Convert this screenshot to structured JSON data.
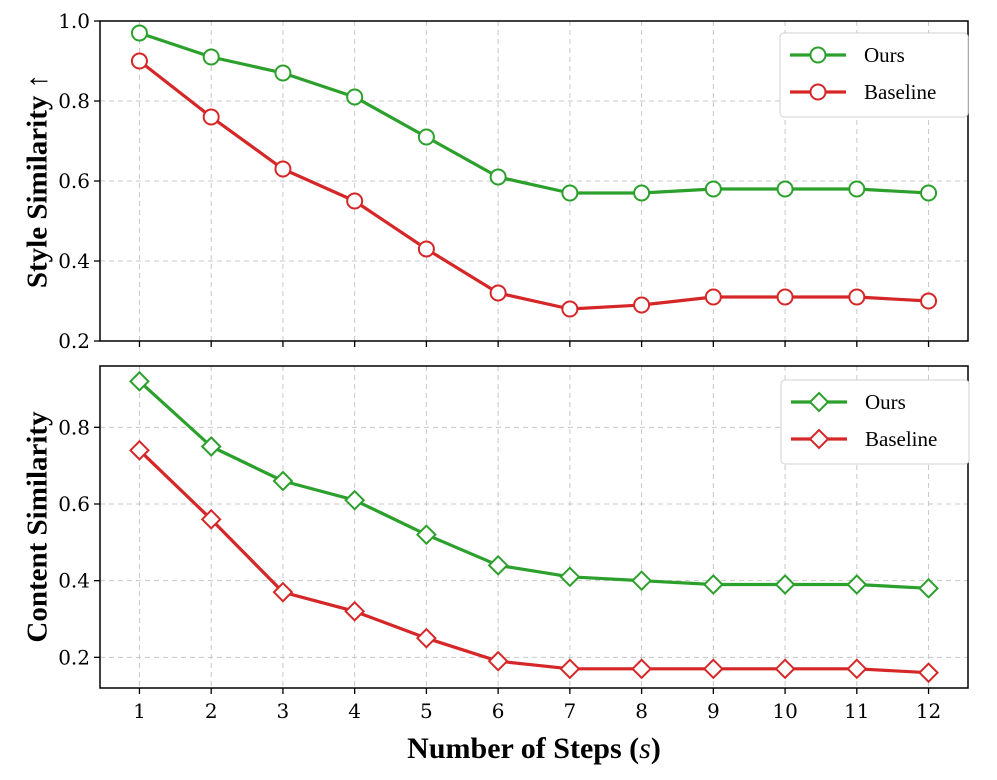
{
  "chart_data": [
    {
      "type": "line",
      "ylabel": "Style Similarity ↑",
      "xlabel": "",
      "x": [
        1,
        2,
        3,
        4,
        5,
        6,
        7,
        8,
        9,
        10,
        11,
        12
      ],
      "xlim": [
        0.45,
        12.55
      ],
      "ylim": [
        0.2,
        1.0
      ],
      "yticks": [
        0.2,
        0.4,
        0.6,
        0.8,
        1.0
      ],
      "ytick_labels": [
        "0.2",
        "0.4",
        "0.6",
        "0.8",
        "1.0"
      ],
      "xtick_labels": [
        "1",
        "2",
        "3",
        "4",
        "5",
        "6",
        "7",
        "8",
        "9",
        "10",
        "11",
        "12"
      ],
      "show_xtick_labels": false,
      "marker": "circle",
      "grid": true,
      "legend_position": "top-right",
      "series": [
        {
          "name": "Ours",
          "color": "#2ca02c",
          "values": [
            0.97,
            0.91,
            0.87,
            0.81,
            0.71,
            0.61,
            0.57,
            0.57,
            0.58,
            0.58,
            0.58,
            0.57
          ]
        },
        {
          "name": "Baseline",
          "color": "#d62728",
          "values": [
            0.9,
            0.76,
            0.63,
            0.55,
            0.43,
            0.32,
            0.28,
            0.29,
            0.31,
            0.31,
            0.31,
            0.3
          ]
        }
      ]
    },
    {
      "type": "line",
      "ylabel": "Content Similarity",
      "xlabel": "Number of Steps (s)",
      "x": [
        1,
        2,
        3,
        4,
        5,
        6,
        7,
        8,
        9,
        10,
        11,
        12
      ],
      "xlim": [
        0.45,
        12.55
      ],
      "ylim": [
        0.12,
        0.96
      ],
      "yticks": [
        0.2,
        0.4,
        0.6,
        0.8
      ],
      "ytick_labels": [
        "0.2",
        "0.4",
        "0.6",
        "0.8"
      ],
      "xtick_labels": [
        "1",
        "2",
        "3",
        "4",
        "5",
        "6",
        "7",
        "8",
        "9",
        "10",
        "11",
        "12"
      ],
      "show_xtick_labels": true,
      "marker": "diamond",
      "grid": true,
      "legend_position": "top-right",
      "series": [
        {
          "name": "Ours",
          "color": "#2ca02c",
          "values": [
            0.92,
            0.75,
            0.66,
            0.61,
            0.52,
            0.44,
            0.41,
            0.4,
            0.39,
            0.39,
            0.39,
            0.38
          ]
        },
        {
          "name": "Baseline",
          "color": "#d62728",
          "values": [
            0.74,
            0.56,
            0.37,
            0.32,
            0.25,
            0.19,
            0.17,
            0.17,
            0.17,
            0.17,
            0.17,
            0.16
          ]
        }
      ]
    }
  ]
}
